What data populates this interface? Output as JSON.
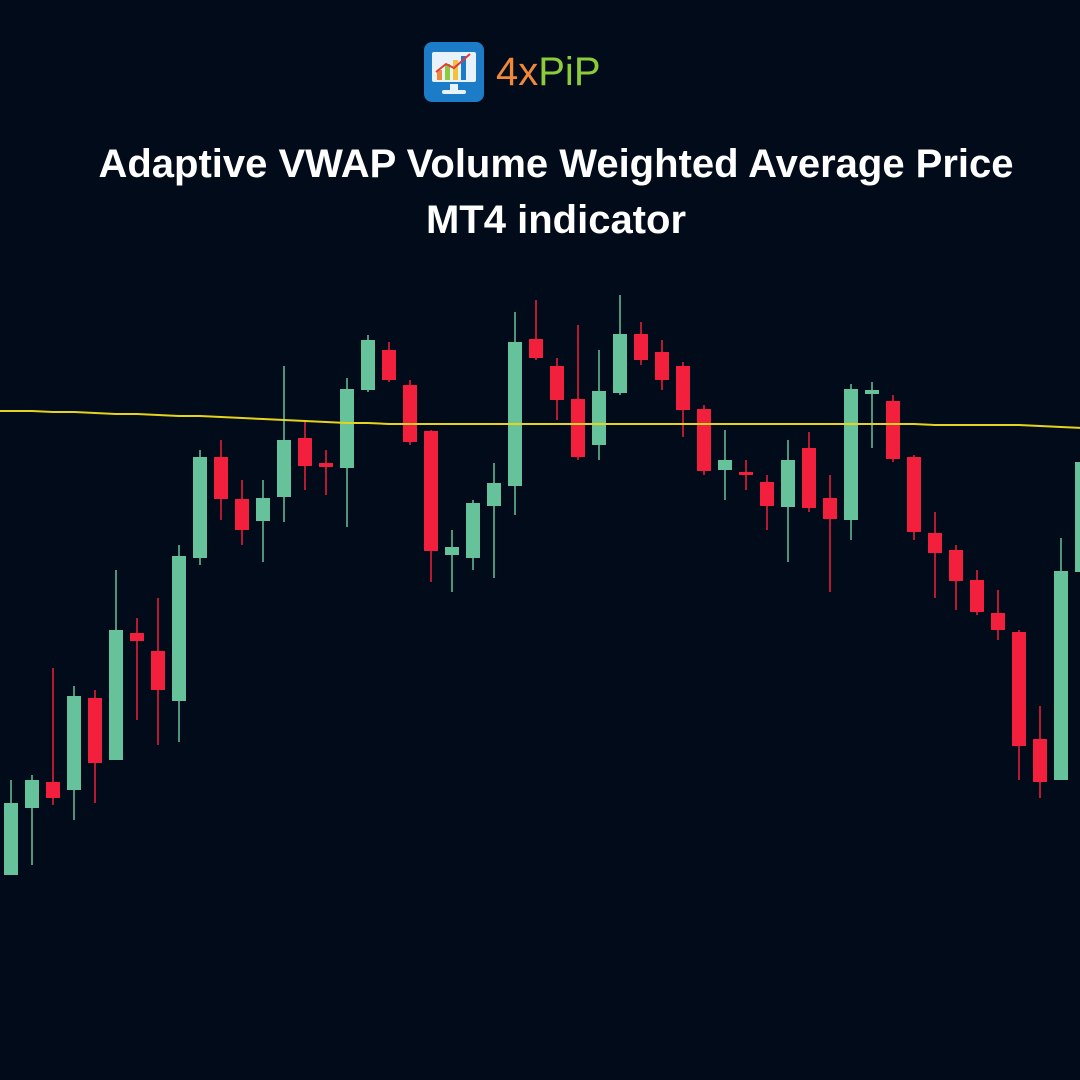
{
  "logo": {
    "part1": "4x",
    "part2": "PiP"
  },
  "chart_data": {
    "type": "candlestick",
    "title": "Adaptive VWAP Volume Weighted Average Price MT4 indicator",
    "ylim": [
      0,
      720
    ],
    "up_color": "#66c29a",
    "down_color": "#f2203c",
    "open": [
      125,
      192,
      218,
      210,
      302,
      240,
      367,
      349,
      299,
      442,
      543,
      501,
      479,
      503,
      562,
      537,
      532,
      610,
      650,
      615,
      569,
      445,
      442,
      494,
      514,
      661,
      634,
      601,
      555,
      607,
      666,
      648,
      634,
      591,
      530,
      528,
      518,
      493,
      552,
      502,
      480,
      606,
      599,
      543,
      467,
      450,
      420,
      387,
      368,
      261,
      220,
      428
    ],
    "high": [
      220,
      225,
      332,
      314,
      310,
      430,
      382,
      402,
      455,
      550,
      560,
      520,
      520,
      634,
      580,
      550,
      622,
      665,
      658,
      620,
      570,
      470,
      500,
      537,
      688,
      700,
      642,
      675,
      650,
      705,
      678,
      660,
      638,
      595,
      570,
      540,
      525,
      560,
      568,
      525,
      616,
      618,
      605,
      545,
      488,
      455,
      430,
      410,
      370,
      294,
      462,
      575
    ],
    "low": [
      125,
      135,
      195,
      180,
      197,
      240,
      280,
      255,
      258,
      435,
      480,
      455,
      438,
      478,
      510,
      505,
      473,
      608,
      618,
      555,
      418,
      408,
      430,
      422,
      485,
      640,
      580,
      540,
      540,
      605,
      635,
      610,
      563,
      525,
      500,
      510,
      470,
      438,
      488,
      408,
      460,
      552,
      538,
      460,
      402,
      390,
      385,
      360,
      220,
      202,
      220,
      428
    ],
    "close": [
      197,
      220,
      202,
      304,
      237,
      370,
      359,
      310,
      444,
      543,
      501,
      470,
      502,
      560,
      534,
      533,
      611,
      660,
      620,
      558,
      449,
      453,
      497,
      517,
      658,
      642,
      600,
      543,
      609,
      666,
      640,
      620,
      590,
      529,
      540,
      525,
      494,
      540,
      492,
      481,
      611,
      610,
      541,
      468,
      447,
      419,
      388,
      370,
      254,
      218,
      429,
      538
    ],
    "vwap": {
      "color": "#e6d31e",
      "values": [
        589,
        589,
        588,
        588,
        587,
        586,
        586,
        585,
        584,
        584,
        583,
        582,
        581,
        580,
        579,
        578,
        577,
        577,
        576,
        576,
        576,
        576,
        576,
        576,
        576,
        576,
        576,
        576,
        576,
        576,
        576,
        576,
        576,
        576,
        576,
        576,
        576,
        576,
        576,
        576,
        576,
        576,
        576,
        576,
        575,
        575,
        575,
        575,
        575,
        574,
        573,
        572
      ]
    }
  }
}
